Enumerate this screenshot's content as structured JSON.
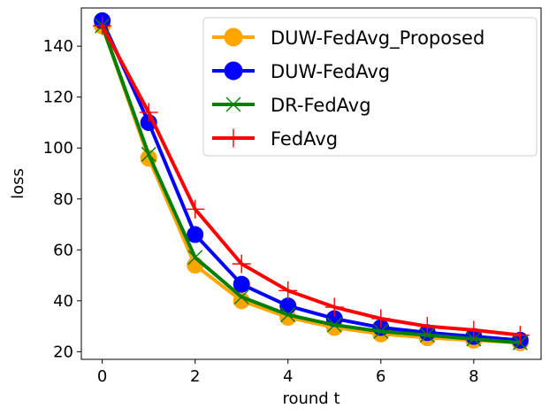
{
  "chart_data": {
    "type": "line",
    "title": "",
    "xlabel": "round t",
    "ylabel": "loss",
    "x": [
      0,
      1,
      2,
      3,
      4,
      5,
      6,
      7,
      8,
      9
    ],
    "xlim": [
      -0.45,
      9.45
    ],
    "ylim": [
      17,
      155
    ],
    "xticks": [
      0,
      2,
      4,
      6,
      8
    ],
    "xtick_labels": [
      "0",
      "2",
      "4",
      "6",
      "8"
    ],
    "yticks": [
      20,
      40,
      60,
      80,
      100,
      120,
      140
    ],
    "ytick_labels": [
      "20",
      "40",
      "60",
      "80",
      "100",
      "120",
      "140"
    ],
    "grid": false,
    "legend_position": "top-right",
    "series": [
      {
        "name": "DUW-FedAvg_Proposed",
        "color": "#FFA500",
        "marker": "circle",
        "values": [
          148,
          96,
          54,
          40,
          33.5,
          29.5,
          27,
          25.5,
          24.5,
          23.5
        ]
      },
      {
        "name": "DUW-FedAvg",
        "color": "#0000FF",
        "marker": "circle",
        "values": [
          150,
          110,
          66,
          46.5,
          38,
          33,
          29.5,
          27.5,
          26,
          24.5
        ]
      },
      {
        "name": "DR-FedAvg",
        "color": "#008000",
        "marker": "x",
        "values": [
          148,
          97.5,
          57,
          41.5,
          34.5,
          30.5,
          28,
          26.5,
          25,
          23.5
        ]
      },
      {
        "name": "FedAvg",
        "color": "#FF0000",
        "marker": "plus",
        "values": [
          148,
          114,
          76,
          54.5,
          44,
          37.5,
          33,
          30,
          28.5,
          26.5
        ]
      }
    ]
  }
}
